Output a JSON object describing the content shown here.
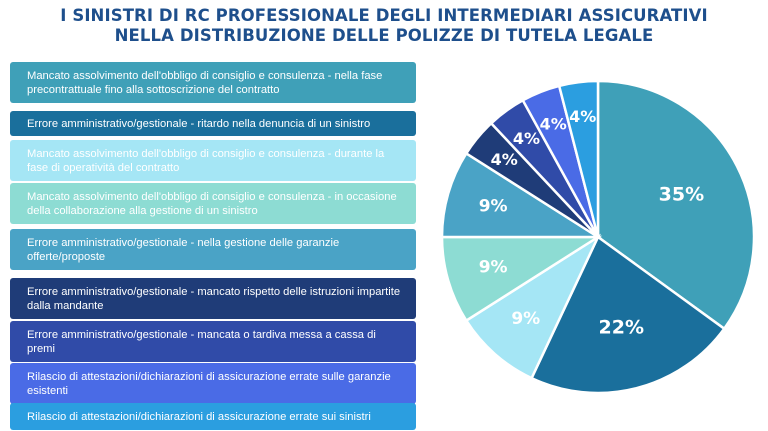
{
  "title": {
    "line1": "I SINISTRI DI RC PROFESSIONALE DEGLI INTERMEDIARI ASSICURATIVI",
    "line2": "NELLA DISTRIBUZIONE DELLE POLIZZE DI TUTELA LEGALE"
  },
  "legend": {
    "items": [
      {
        "label": "Mancato assolvimento dell'obbligo di consiglio e consulenza - nella fase precontrattuale fino alla sottoscrizione del contratto",
        "color": "#3fa0b8",
        "text_color": "#ffffff"
      },
      {
        "label": "Errore amministrativo/gestionale - ritardo nella denuncia di un sinistro",
        "color": "#1a6f9c",
        "text_color": "#ffffff"
      },
      {
        "label": "Mancato assolvimento dell'obbligo di consiglio e consulenza - durante la fase di operatività del contratto",
        "color": "#a5e6f5",
        "text_color": "#ffffff"
      },
      {
        "label": "Mancato assolvimento dell'obbligo di consiglio e consulenza -  in occasione della collaborazione alla gestione di un sinistro",
        "color": "#8ddcd3",
        "text_color": "#ffffff"
      },
      {
        "label": "Errore amministrativo/gestionale - nella gestione delle garanzie offerte/proposte",
        "color": "#4aa3c6",
        "text_color": "#ffffff"
      },
      {
        "label": "Errore amministrativo/gestionale - mancato rispetto delle istruzioni impartite dalla mandante",
        "color": "#1f3c78",
        "text_color": "#ffffff"
      },
      {
        "label": "Errore amministrativo/gestionale - mancata o tardiva messa a cassa di premi",
        "color": "#304ba8",
        "text_color": "#ffffff"
      },
      {
        "label": "Rilascio di attestazioni/dichiarazioni di assicurazione errate sulle garanzie esistenti",
        "color": "#4a6be6",
        "text_color": "#ffffff"
      },
      {
        "label": "Rilascio di attestazioni/dichiarazioni di assicurazione errate sui sinistri",
        "color": "#2b9ee0",
        "text_color": "#ffffff"
      }
    ]
  },
  "chart_data": {
    "type": "pie",
    "slices": [
      {
        "label": "Mancato assolvimento dell'obbligo di consiglio e consulenza - nella fase precontrattuale fino alla sottoscrizione del contratto",
        "value": 35,
        "display": "35%",
        "color": "#3fa0b8"
      },
      {
        "label": "Errore amministrativo/gestionale - ritardo nella denuncia di un sinistro",
        "value": 22,
        "display": "22%",
        "color": "#1a6f9c"
      },
      {
        "label": "Mancato assolvimento dell'obbligo di consiglio e consulenza - durante la fase di operatività del contratto",
        "value": 9,
        "display": "9%",
        "color": "#a5e6f5"
      },
      {
        "label": "Mancato assolvimento dell'obbligo di consiglio e consulenza -  in occasione della collaborazione alla gestione di un sinistro",
        "value": 9,
        "display": "9%",
        "color": "#8ddcd3"
      },
      {
        "label": "Errore amministrativo/gestionale - nella gestione delle garanzie offerte/proposte",
        "value": 9,
        "display": "9%",
        "color": "#4aa3c6"
      },
      {
        "label": "Errore amministrativo/gestionale - mancato rispetto delle istruzioni impartite dalla mandante",
        "value": 4,
        "display": "4%",
        "color": "#1f3c78"
      },
      {
        "label": "Errore amministrativo/gestionale - mancata o tardiva messa a cassa di premi",
        "value": 4,
        "display": "4%",
        "color": "#304ba8"
      },
      {
        "label": "Rilascio di attestazioni/dichiarazioni di assicurazione errate sulle garanzie esistenti",
        "value": 4,
        "display": "4%",
        "color": "#4a6be6"
      },
      {
        "label": "Rilascio di attestazioni/dichiarazioni di assicurazione errate sui sinistri",
        "value": 4,
        "display": "4%",
        "color": "#2b9ee0"
      }
    ]
  }
}
